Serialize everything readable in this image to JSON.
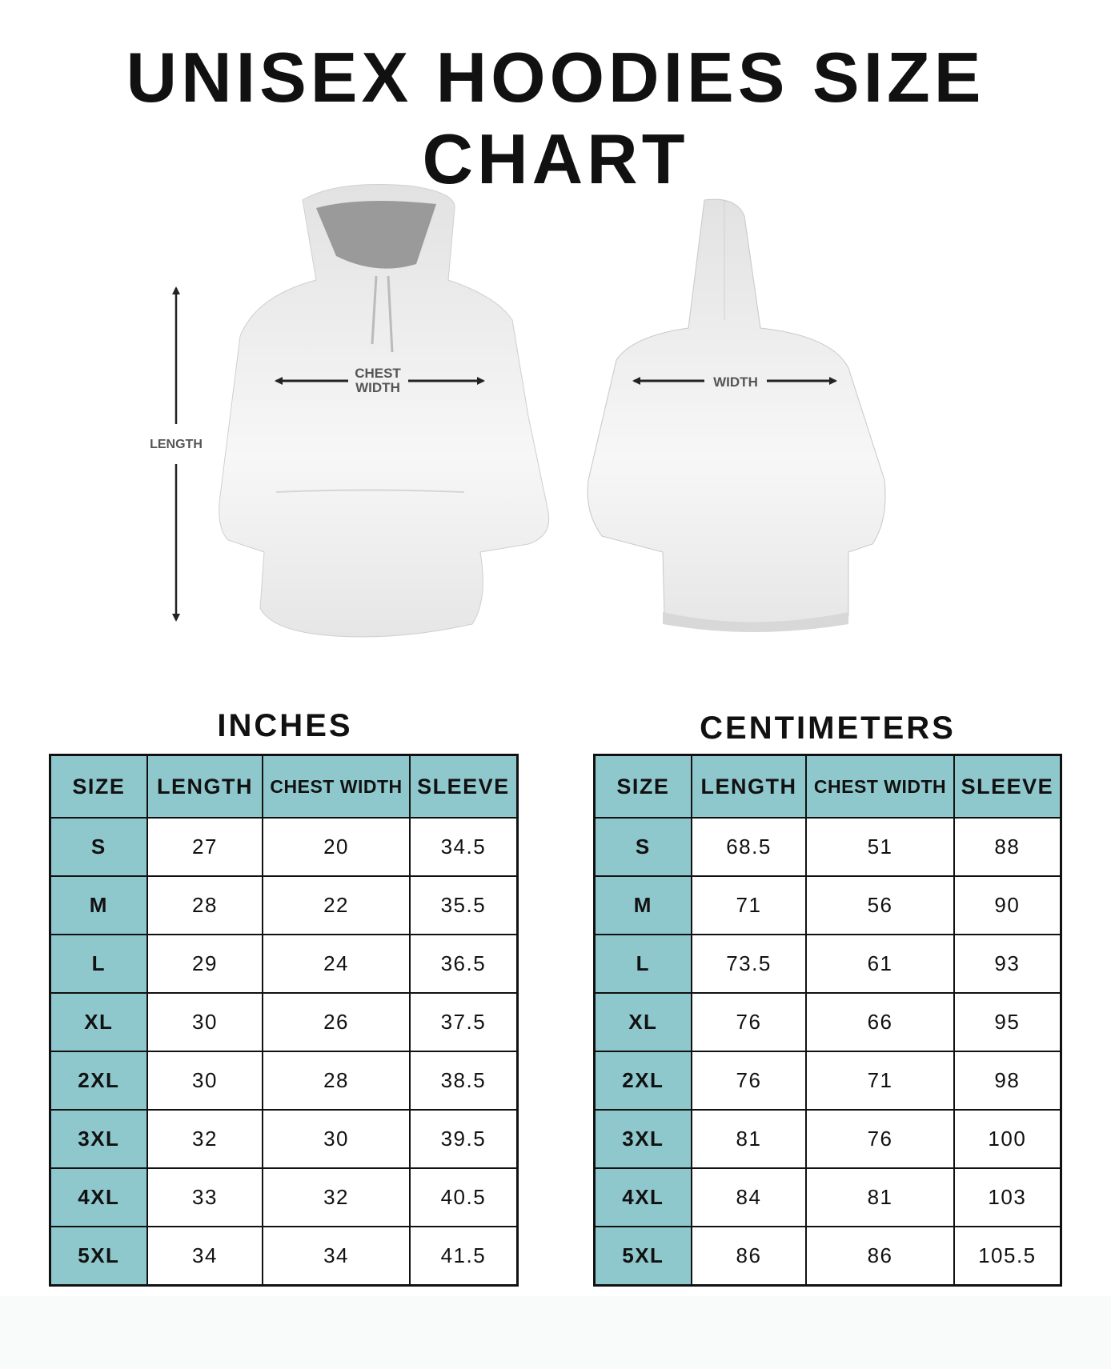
{
  "title": "UNISEX HOODIES SIZE CHART",
  "figure": {
    "front_labels": {
      "length": "LENGTH",
      "chest_line1": "CHEST",
      "chest_line2": "WIDTH"
    },
    "back_labels": {
      "width": "WIDTH"
    }
  },
  "colors": {
    "header_bg": "#8fc8cc",
    "border": "#111111"
  },
  "tables": [
    {
      "title": "INCHES",
      "headers": [
        "SIZE",
        "LENGTH",
        "CHEST WIDTH",
        "SLEEVE"
      ],
      "rows": [
        [
          "S",
          "27",
          "20",
          "34.5"
        ],
        [
          "M",
          "28",
          "22",
          "35.5"
        ],
        [
          "L",
          "29",
          "24",
          "36.5"
        ],
        [
          "XL",
          "30",
          "26",
          "37.5"
        ],
        [
          "2XL",
          "30",
          "28",
          "38.5"
        ],
        [
          "3XL",
          "32",
          "30",
          "39.5"
        ],
        [
          "4XL",
          "33",
          "32",
          "40.5"
        ],
        [
          "5XL",
          "34",
          "34",
          "41.5"
        ]
      ]
    },
    {
      "title": "CENTIMETERS",
      "headers": [
        "SIZE",
        "LENGTH",
        "CHEST WIDTH",
        "SLEEVE"
      ],
      "rows": [
        [
          "S",
          "68.5",
          "51",
          "88"
        ],
        [
          "M",
          "71",
          "56",
          "90"
        ],
        [
          "L",
          "73.5",
          "61",
          "93"
        ],
        [
          "XL",
          "76",
          "66",
          "95"
        ],
        [
          "2XL",
          "76",
          "71",
          "98"
        ],
        [
          "3XL",
          "81",
          "76",
          "100"
        ],
        [
          "4XL",
          "84",
          "81",
          "103"
        ],
        [
          "5XL",
          "86",
          "86",
          "105.5"
        ]
      ]
    }
  ]
}
